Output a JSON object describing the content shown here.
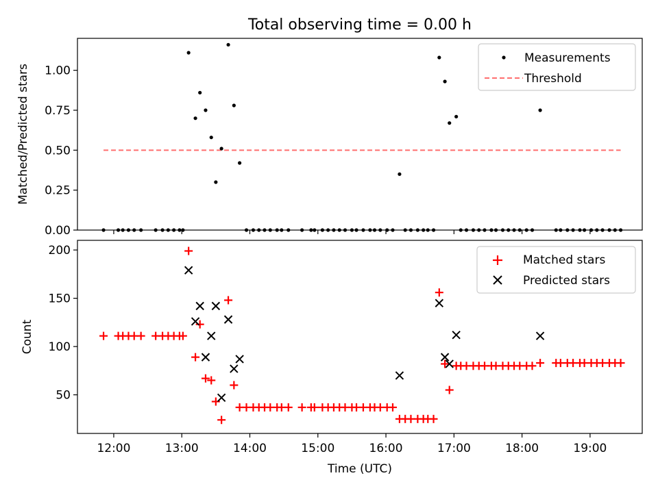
{
  "chart_data": [
    {
      "type": "scatter",
      "title": "Total observing time = 0.00 h",
      "xlabel": "",
      "ylabel": "Matched/Predicted stars",
      "xlim": [
        "11:28",
        "19:46"
      ],
      "ylim": [
        0,
        1.2
      ],
      "yticks": [
        0,
        0.25,
        0.5,
        0.75,
        1.0
      ],
      "ytick_labels": [
        "0.00",
        "0.25",
        "0.50",
        "0.75",
        "1.00"
      ],
      "legend_position": "upper-right",
      "series": [
        {
          "name": "Measurements",
          "color": "#000000",
          "marker": "dot",
          "points": [
            [
              "11:51",
              0
            ],
            [
              "12:04",
              0
            ],
            [
              "12:08",
              0
            ],
            [
              "12:13",
              0
            ],
            [
              "12:18",
              0
            ],
            [
              "12:24",
              0
            ],
            [
              "12:37",
              0
            ],
            [
              "12:43",
              0
            ],
            [
              "12:48",
              0
            ],
            [
              "12:53",
              0
            ],
            [
              "12:58",
              0
            ],
            [
              "13:01",
              0
            ],
            [
              "13:06",
              1.11
            ],
            [
              "13:12",
              0.7
            ],
            [
              "13:16",
              0.86
            ],
            [
              "13:21",
              0.75
            ],
            [
              "13:26",
              0.58
            ],
            [
              "13:30",
              0.3
            ],
            [
              "13:35",
              0.51
            ],
            [
              "13:41",
              1.16
            ],
            [
              "13:46",
              0.78
            ],
            [
              "13:51",
              0.42
            ],
            [
              "13:57",
              0
            ],
            [
              "14:03",
              0
            ],
            [
              "14:08",
              0
            ],
            [
              "14:13",
              0
            ],
            [
              "14:18",
              0
            ],
            [
              "14:24",
              0
            ],
            [
              "14:28",
              0
            ],
            [
              "14:34",
              0
            ],
            [
              "14:46",
              0
            ],
            [
              "14:54",
              0
            ],
            [
              "14:57",
              0
            ],
            [
              "15:04",
              0
            ],
            [
              "15:09",
              0
            ],
            [
              "15:14",
              0
            ],
            [
              "15:19",
              0
            ],
            [
              "15:24",
              0
            ],
            [
              "15:30",
              0
            ],
            [
              "15:34",
              0
            ],
            [
              "15:40",
              0
            ],
            [
              "15:46",
              0
            ],
            [
              "15:50",
              0
            ],
            [
              "15:55",
              0
            ],
            [
              "16:01",
              0
            ],
            [
              "16:06",
              0
            ],
            [
              "16:12",
              0.35
            ],
            [
              "16:17",
              0
            ],
            [
              "16:22",
              0
            ],
            [
              "16:28",
              0
            ],
            [
              "16:33",
              0
            ],
            [
              "16:37",
              0
            ],
            [
              "16:42",
              0
            ],
            [
              "16:47",
              1.08
            ],
            [
              "16:52",
              0.93
            ],
            [
              "16:56",
              0.67
            ],
            [
              "17:02",
              0.71
            ],
            [
              "17:06",
              0
            ],
            [
              "17:11",
              0
            ],
            [
              "17:17",
              0
            ],
            [
              "17:22",
              0
            ],
            [
              "17:27",
              0
            ],
            [
              "17:33",
              0
            ],
            [
              "17:37",
              0
            ],
            [
              "17:43",
              0
            ],
            [
              "17:48",
              0
            ],
            [
              "17:53",
              0
            ],
            [
              "17:58",
              0
            ],
            [
              "18:04",
              0
            ],
            [
              "18:09",
              0
            ],
            [
              "18:16",
              0.75
            ],
            [
              "18:30",
              0
            ],
            [
              "18:34",
              0
            ],
            [
              "18:40",
              0
            ],
            [
              "18:45",
              0
            ],
            [
              "18:51",
              0
            ],
            [
              "18:55",
              0
            ],
            [
              "19:01",
              0
            ],
            [
              "19:06",
              0
            ],
            [
              "19:11",
              0
            ],
            [
              "19:17",
              0
            ],
            [
              "19:22",
              0
            ],
            [
              "19:27",
              0
            ]
          ]
        },
        {
          "name": "Threshold",
          "color": "#ff6e6e",
          "style": "dashed",
          "points": [
            [
              "11:51",
              0.5
            ],
            [
              "19:27",
              0.5
            ]
          ]
        }
      ]
    },
    {
      "type": "scatter",
      "title": "",
      "xlabel": "Time (UTC)",
      "ylabel": "Count",
      "xlim": [
        "11:28",
        "19:46"
      ],
      "ylim": [
        10,
        210
      ],
      "yticks": [
        50,
        100,
        150,
        200
      ],
      "ytick_labels": [
        "50",
        "100",
        "150",
        "200"
      ],
      "xticks": [
        "12:00",
        "13:00",
        "14:00",
        "15:00",
        "16:00",
        "17:00",
        "18:00",
        "19:00"
      ],
      "xtick_labels": [
        "12:00",
        "13:00",
        "14:00",
        "15:00",
        "16:00",
        "17:00",
        "18:00",
        "19:00"
      ],
      "legend_position": "upper-right",
      "series": [
        {
          "name": "Matched stars",
          "color": "#ff0000",
          "marker": "plus",
          "points": [
            [
              "11:51",
              111
            ],
            [
              "12:04",
              111
            ],
            [
              "12:08",
              111
            ],
            [
              "12:13",
              111
            ],
            [
              "12:18",
              111
            ],
            [
              "12:24",
              111
            ],
            [
              "12:37",
              111
            ],
            [
              "12:43",
              111
            ],
            [
              "12:48",
              111
            ],
            [
              "12:53",
              111
            ],
            [
              "12:58",
              111
            ],
            [
              "13:01",
              111
            ],
            [
              "13:06",
              199
            ],
            [
              "13:12",
              89
            ],
            [
              "13:16",
              123
            ],
            [
              "13:21",
              67
            ],
            [
              "13:26",
              65
            ],
            [
              "13:30",
              43
            ],
            [
              "13:35",
              24
            ],
            [
              "13:41",
              148
            ],
            [
              "13:46",
              60
            ],
            [
              "13:51",
              37
            ],
            [
              "13:57",
              37
            ],
            [
              "14:03",
              37
            ],
            [
              "14:08",
              37
            ],
            [
              "14:13",
              37
            ],
            [
              "14:18",
              37
            ],
            [
              "14:24",
              37
            ],
            [
              "14:28",
              37
            ],
            [
              "14:34",
              37
            ],
            [
              "14:46",
              37
            ],
            [
              "14:54",
              37
            ],
            [
              "14:57",
              37
            ],
            [
              "15:04",
              37
            ],
            [
              "15:09",
              37
            ],
            [
              "15:14",
              37
            ],
            [
              "15:19",
              37
            ],
            [
              "15:24",
              37
            ],
            [
              "15:30",
              37
            ],
            [
              "15:34",
              37
            ],
            [
              "15:40",
              37
            ],
            [
              "15:46",
              37
            ],
            [
              "15:50",
              37
            ],
            [
              "15:55",
              37
            ],
            [
              "16:01",
              37
            ],
            [
              "16:06",
              37
            ],
            [
              "16:12",
              25
            ],
            [
              "16:17",
              25
            ],
            [
              "16:22",
              25
            ],
            [
              "16:28",
              25
            ],
            [
              "16:33",
              25
            ],
            [
              "16:37",
              25
            ],
            [
              "16:42",
              25
            ],
            [
              "16:47",
              156
            ],
            [
              "16:52",
              82
            ],
            [
              "16:56",
              55
            ],
            [
              "17:02",
              80
            ],
            [
              "17:06",
              80
            ],
            [
              "17:11",
              80
            ],
            [
              "17:17",
              80
            ],
            [
              "17:22",
              80
            ],
            [
              "17:27",
              80
            ],
            [
              "17:33",
              80
            ],
            [
              "17:37",
              80
            ],
            [
              "17:43",
              80
            ],
            [
              "17:48",
              80
            ],
            [
              "17:53",
              80
            ],
            [
              "17:58",
              80
            ],
            [
              "18:04",
              80
            ],
            [
              "18:09",
              80
            ],
            [
              "18:16",
              83
            ],
            [
              "18:30",
              83
            ],
            [
              "18:34",
              83
            ],
            [
              "18:40",
              83
            ],
            [
              "18:45",
              83
            ],
            [
              "18:51",
              83
            ],
            [
              "18:55",
              83
            ],
            [
              "19:01",
              83
            ],
            [
              "19:06",
              83
            ],
            [
              "19:11",
              83
            ],
            [
              "19:17",
              83
            ],
            [
              "19:22",
              83
            ],
            [
              "19:27",
              83
            ]
          ]
        },
        {
          "name": "Predicted stars",
          "color": "#000000",
          "marker": "x",
          "points": [
            [
              "13:06",
              179
            ],
            [
              "13:12",
              126
            ],
            [
              "13:16",
              142
            ],
            [
              "13:21",
              89
            ],
            [
              "13:26",
              111
            ],
            [
              "13:30",
              142
            ],
            [
              "13:35",
              47
            ],
            [
              "13:41",
              128
            ],
            [
              "13:46",
              77
            ],
            [
              "13:51",
              87
            ],
            [
              "16:12",
              70
            ],
            [
              "16:47",
              145
            ],
            [
              "16:52",
              89
            ],
            [
              "16:56",
              82
            ],
            [
              "17:02",
              112
            ],
            [
              "18:16",
              111
            ]
          ]
        }
      ]
    }
  ]
}
